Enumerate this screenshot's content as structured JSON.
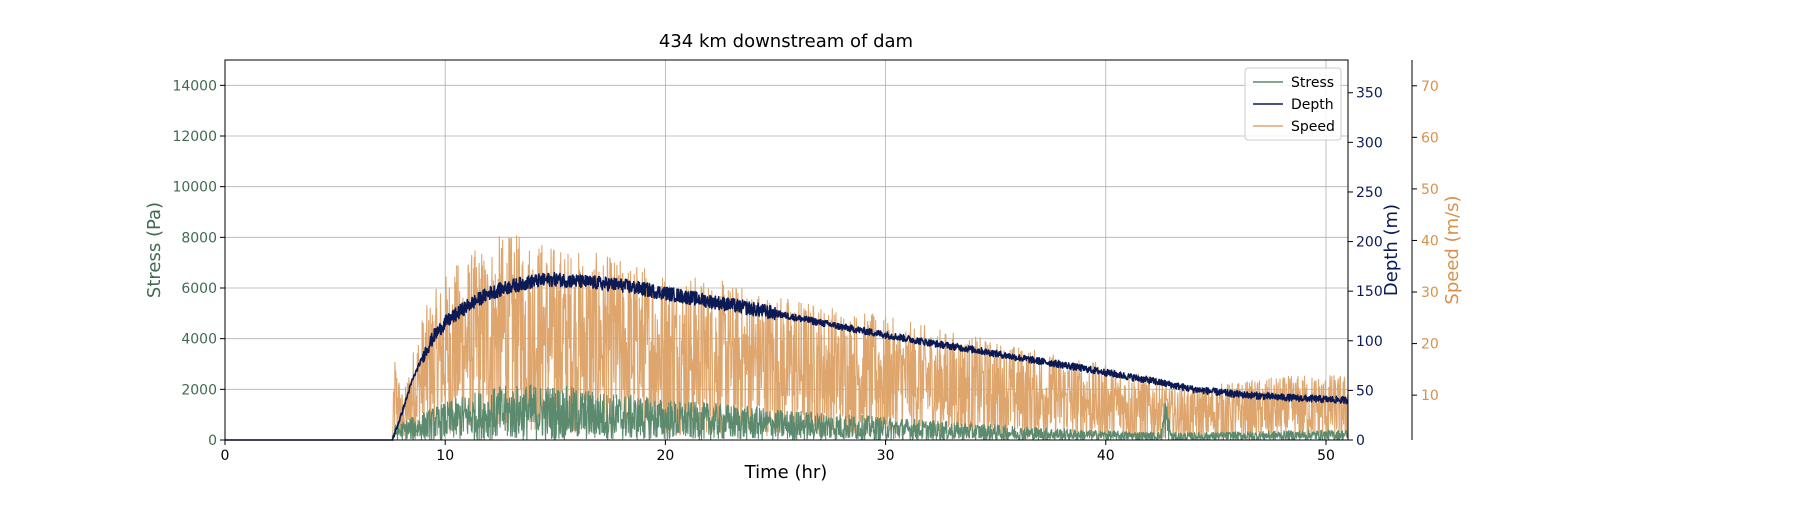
{
  "chart_data": {
    "type": "line",
    "title": "434 km downstream of dam",
    "xlabel": "Time (hr)",
    "xlim": [
      0,
      51
    ],
    "xticks": [
      0,
      10,
      20,
      30,
      40,
      50
    ],
    "grid": true,
    "legend_position": "top-right",
    "axes": {
      "stress": {
        "label": "Stress (Pa)",
        "ylim": [
          0,
          15000
        ],
        "ticks": [
          0,
          2000,
          4000,
          6000,
          8000,
          10000,
          12000,
          14000
        ],
        "color": "#3f6b4f"
      },
      "depth": {
        "label": "Depth (m)",
        "ylim": [
          0,
          383
        ],
        "ticks": [
          0,
          50,
          100,
          150,
          200,
          250,
          300,
          350
        ],
        "color": "#0b1a55"
      },
      "speed": {
        "label": "Speed (m/s)",
        "ylim": [
          1.3,
          75
        ],
        "ticks": [
          10,
          20,
          30,
          40,
          50,
          60,
          70
        ],
        "color": "#d9914a"
      }
    },
    "series": [
      {
        "name": "Stress",
        "axis": "stress",
        "color": "#5b8a6e",
        "noise": 700,
        "x": [
          0,
          7.6,
          7.7,
          8.5,
          9.5,
          11,
          12.5,
          14,
          15.5,
          17,
          19,
          21,
          23,
          25,
          27,
          29,
          31,
          33,
          35,
          37,
          39,
          41,
          42.5,
          42.7,
          43,
          45,
          47,
          49,
          51
        ],
        "y": [
          0,
          0,
          300,
          450,
          650,
          900,
          1050,
          1100,
          1050,
          950,
          850,
          750,
          700,
          600,
          550,
          480,
          420,
          360,
          300,
          250,
          200,
          170,
          150,
          900,
          120,
          150,
          170,
          190,
          200
        ]
      },
      {
        "name": "Depth",
        "axis": "depth",
        "color": "#0b1a55",
        "noise": 7,
        "x": [
          0,
          7.6,
          8.0,
          8.5,
          9,
          9.5,
          10,
          11,
          12,
          13,
          14,
          15,
          16,
          18,
          20,
          22,
          24,
          26,
          28,
          30,
          32,
          34,
          36,
          38,
          40,
          42,
          44,
          46,
          48,
          50,
          51
        ],
        "y": [
          0,
          0,
          25,
          60,
          85,
          105,
          118,
          135,
          148,
          155,
          160,
          162,
          160,
          156,
          148,
          140,
          132,
          123,
          114,
          106,
          98,
          91,
          83,
          76,
          68,
          60,
          51,
          46,
          43,
          41,
          40
        ]
      },
      {
        "name": "Speed",
        "axis": "speed",
        "color": "#dea56c",
        "noise": 12,
        "x": [
          0,
          7.6,
          7.7,
          8.1,
          8.4,
          9.0,
          10,
          11,
          12.5,
          14,
          15,
          17,
          19,
          21,
          23,
          25,
          27,
          29,
          31,
          33,
          35,
          37,
          39,
          41,
          42.5,
          43,
          45,
          47,
          49,
          51
        ],
        "y": [
          1.3,
          1.3,
          10,
          5,
          9,
          14,
          18,
          20,
          22,
          22,
          21,
          20,
          19,
          18,
          17,
          16,
          15,
          14,
          13,
          12,
          11,
          10,
          9,
          8,
          7,
          6,
          6.5,
          7,
          7.5,
          7.5
        ]
      }
    ]
  }
}
